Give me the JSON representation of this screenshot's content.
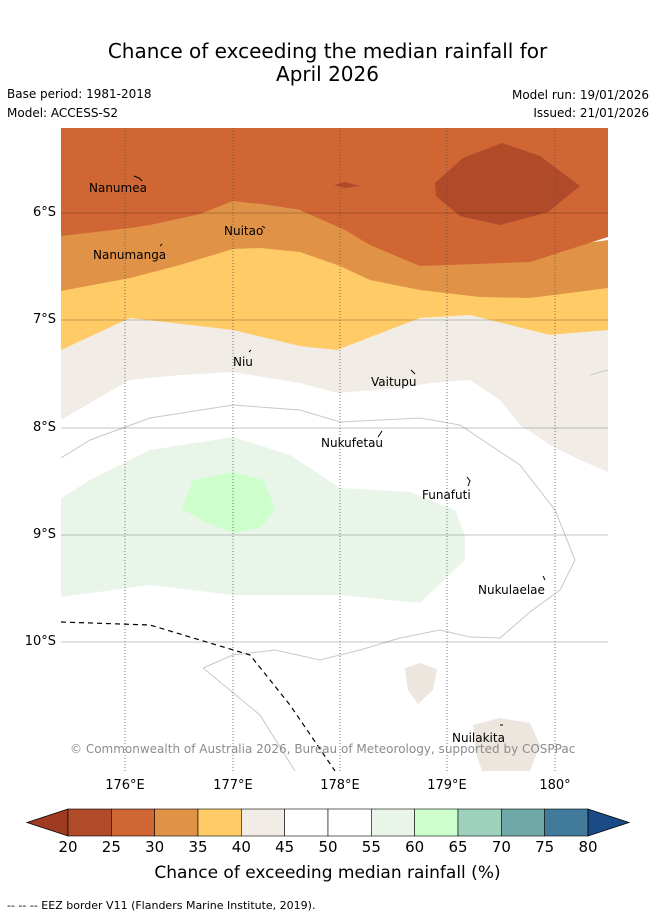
{
  "title_line1": "Chance of exceeding the median rainfall for",
  "title_line2": "April 2026",
  "base_period": "Base period: 1981-2018",
  "model": "Model: ACCESS-S2",
  "model_run": "Model run: 19/01/2026",
  "issued": "Issued: 21/01/2026",
  "copyright": "© Commonwealth of Australia 2026, Bureau of Meteorology, supported by COSPPac",
  "lat_labels": [
    "6°S",
    "7°S",
    "8°S",
    "9°S",
    "10°S"
  ],
  "lon_labels": [
    "176°E",
    "177°E",
    "178°E",
    "179°E",
    "180°"
  ],
  "places": [
    "Nanumea",
    "Nuitao",
    "Nanumanga",
    "Niu",
    "Vaitupu",
    "Nukufetau",
    "Funafuti",
    "Nukulaelae",
    "Nuilakita"
  ],
  "colorbar": {
    "ticks": [
      "20",
      "25",
      "30",
      "35",
      "40",
      "45",
      "50",
      "55",
      "60",
      "65",
      "70",
      "75",
      "80"
    ],
    "colors": [
      "#b04a28",
      "#cf6634",
      "#e09247",
      "#ffcb66",
      "#f1ece6",
      "#ffffff",
      "#ffffff",
      "#eaf5ea",
      "#ccffcc",
      "#9ed1bb",
      "#6fa8a8",
      "#417a9a"
    ],
    "under_color": "#9e3b20",
    "over_color": "#1b4b86",
    "label": "Chance of exceeding median rainfall (%)"
  },
  "footer": "-- -- -- EEZ border V11 (Flanders Marine Institute, 2019)."
}
